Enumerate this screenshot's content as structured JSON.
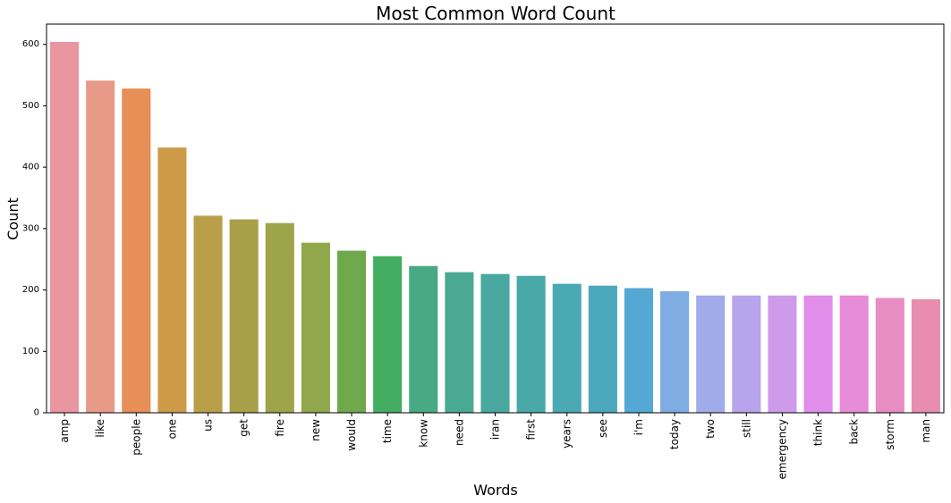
{
  "chart_data": {
    "type": "bar",
    "title": "Most Common Word Count",
    "xlabel": "Words",
    "ylabel": "Count",
    "ylim": [
      0,
      633
    ],
    "yticks": [
      0,
      100,
      200,
      300,
      400,
      500,
      600
    ],
    "categories": [
      "amp",
      "like",
      "people",
      "one",
      "us",
      "get",
      "fire",
      "new",
      "would",
      "time",
      "know",
      "need",
      "iran",
      "first",
      "years",
      "see",
      "i'm",
      "today",
      "two",
      "still",
      "emergency",
      "think",
      "back",
      "storm",
      "man"
    ],
    "values": [
      604,
      541,
      528,
      432,
      321,
      315,
      309,
      277,
      264,
      255,
      239,
      229,
      226,
      223,
      210,
      207,
      203,
      198,
      191,
      191,
      191,
      191,
      191,
      187,
      185
    ],
    "colors": [
      "#ea96a0",
      "#e89a89",
      "#e68f56",
      "#cd9b48",
      "#ba9f49",
      "#aa9f49",
      "#9ea44a",
      "#90a84b",
      "#6fa94b",
      "#43ae62",
      "#48aa84",
      "#49a993",
      "#49a9a1",
      "#49a9a9",
      "#4aa9b2",
      "#4ba8bd",
      "#53a8d4",
      "#80ace4",
      "#a2abea",
      "#b8a4ea",
      "#cd9bea",
      "#e18dea",
      "#e78cd7",
      "#e88cc4",
      "#e98daf"
    ],
    "grid": false,
    "legend": "none"
  }
}
